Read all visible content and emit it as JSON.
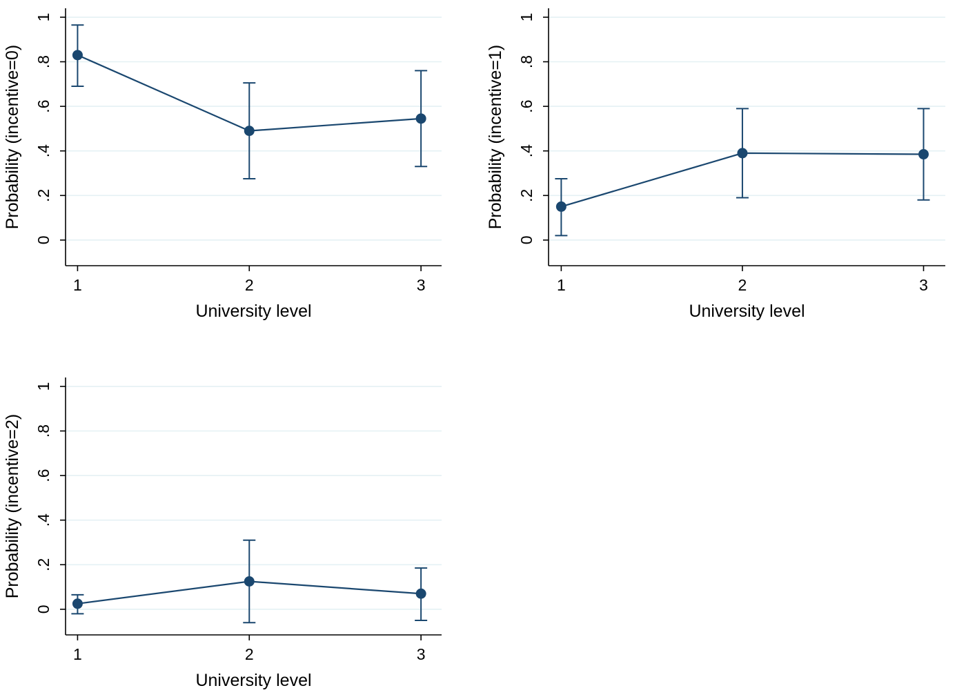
{
  "style": {
    "series_color": "#1a476f",
    "grid_color": "#e4f1f4",
    "axis_color": "#000000",
    "background_color": "#ffffff"
  },
  "chart_data": [
    {
      "type": "line",
      "panel": "top-left",
      "title": "",
      "xlabel": "University level",
      "ylabel": "Probability (incentive=0)",
      "x": [
        1,
        2,
        3
      ],
      "y": [
        0.83,
        0.49,
        0.545
      ],
      "ci_low": [
        0.69,
        0.275,
        0.33
      ],
      "ci_high": [
        0.965,
        0.705,
        0.76
      ],
      "xlim": [
        0.93,
        3.12
      ],
      "ylim": [
        -0.115,
        1.04
      ],
      "xticks": [
        1,
        2,
        3
      ],
      "xtick_labels": [
        "1",
        "2",
        "3"
      ],
      "yticks": [
        0,
        0.2,
        0.4,
        0.6,
        0.8,
        1
      ],
      "ytick_labels": [
        "0",
        ".2",
        ".4",
        ".6",
        ".8",
        "1"
      ],
      "grid": true,
      "marker": "circle",
      "error_bars": true,
      "legend": "none"
    },
    {
      "type": "line",
      "panel": "top-right",
      "title": "",
      "xlabel": "University level",
      "ylabel": "Probability (incentive=1)",
      "x": [
        1,
        2,
        3
      ],
      "y": [
        0.15,
        0.39,
        0.385
      ],
      "ci_low": [
        0.02,
        0.19,
        0.18
      ],
      "ci_high": [
        0.275,
        0.59,
        0.59
      ],
      "xlim": [
        0.93,
        3.12
      ],
      "ylim": [
        -0.115,
        1.04
      ],
      "xticks": [
        1,
        2,
        3
      ],
      "xtick_labels": [
        "1",
        "2",
        "3"
      ],
      "yticks": [
        0,
        0.2,
        0.4,
        0.6,
        0.8,
        1
      ],
      "ytick_labels": [
        "0",
        ".2",
        ".4",
        ".6",
        ".8",
        "1"
      ],
      "grid": true,
      "marker": "circle",
      "error_bars": true,
      "legend": "none"
    },
    {
      "type": "line",
      "panel": "bottom-left",
      "title": "",
      "xlabel": "University level",
      "ylabel": "Probability (incentive=2)",
      "x": [
        1,
        2,
        3
      ],
      "y": [
        0.025,
        0.125,
        0.07
      ],
      "ci_low": [
        -0.02,
        -0.06,
        -0.05
      ],
      "ci_high": [
        0.065,
        0.31,
        0.185
      ],
      "xlim": [
        0.93,
        3.12
      ],
      "ylim": [
        -0.115,
        1.04
      ],
      "xticks": [
        1,
        2,
        3
      ],
      "xtick_labels": [
        "1",
        "2",
        "3"
      ],
      "yticks": [
        0,
        0.2,
        0.4,
        0.6,
        0.8,
        1
      ],
      "ytick_labels": [
        "0",
        ".2",
        ".4",
        ".6",
        ".8",
        "1"
      ],
      "grid": true,
      "marker": "circle",
      "error_bars": true,
      "legend": "none"
    }
  ]
}
